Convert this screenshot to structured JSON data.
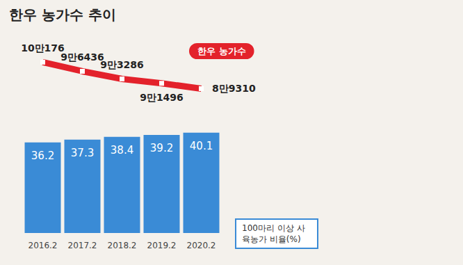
{
  "chart_data": {
    "type": "bar",
    "title": "한우 농가수 추이",
    "categories": [
      "2016.2",
      "2017.2",
      "2018.2",
      "2019.2",
      "2020.2"
    ],
    "tick_labels": "x",
    "data_labels": true,
    "ylim": [
      0,
      70
    ],
    "y2lim": [
      30000,
      102000
    ],
    "series": [
      {
        "name": "100마리 이상 사육농가 비율(%)",
        "type": "bar",
        "color": "#3a8bd6",
        "values": [
          36.2,
          37.3,
          38.4,
          39.2,
          40.1
        ]
      },
      {
        "name": "한우 농가수",
        "type": "line",
        "axis": "y2",
        "color": "#e3222b",
        "marker": "square",
        "values": [
          100176,
          96436,
          93286,
          91496,
          89310
        ],
        "value_labels": [
          "10만176",
          "9만6436",
          "9만3286",
          "9만1496",
          "8만9310"
        ]
      }
    ]
  }
}
